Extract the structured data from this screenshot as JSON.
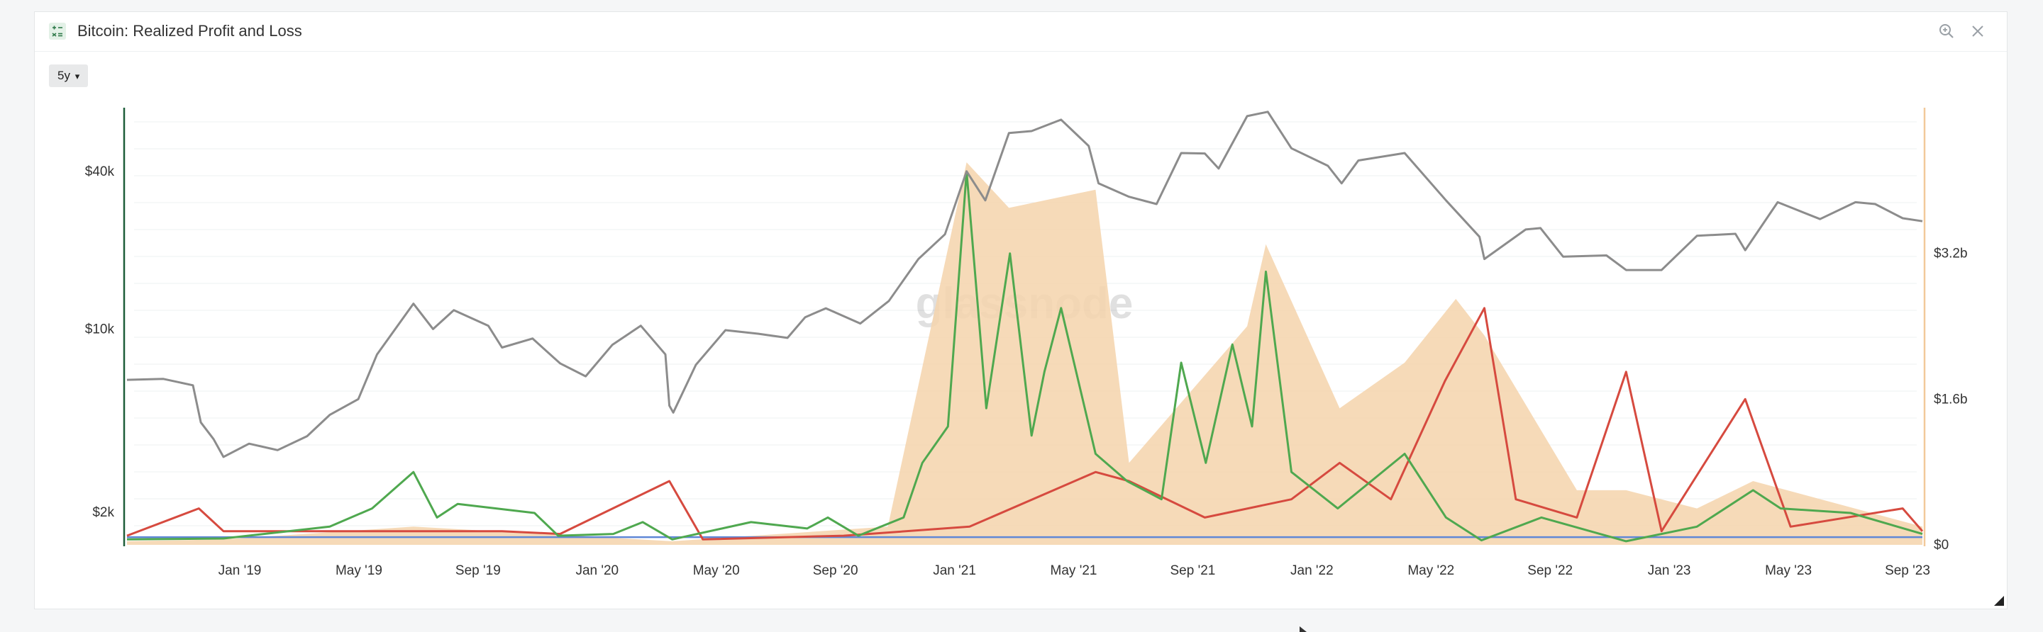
{
  "window": {
    "title": "Bitcoin: Realized Profit and Loss",
    "range_label": "5y",
    "range_caret": "▾",
    "icons": {
      "app": "indicator-icon",
      "zoom": "zoom-in-icon",
      "close": "close-icon",
      "resize": "resize-handle-icon"
    }
  },
  "chart_data": {
    "type": "line",
    "title": "Bitcoin: Realized Profit and Loss",
    "watermark": "glassnode",
    "x_ticks": [
      "Jan '19",
      "May '19",
      "Sep '19",
      "Jan '20",
      "May '20",
      "Sep '20",
      "Jan '21",
      "May '21",
      "Sep '21",
      "Jan '22",
      "May '22",
      "Sep '22",
      "Jan '23",
      "May '23",
      "Sep '23"
    ],
    "y_left": {
      "scale": "log",
      "ticks": [
        "$2k",
        "$10k",
        "$40k"
      ],
      "tick_values": [
        2000,
        10000,
        40000
      ],
      "range": [
        1500,
        70000
      ]
    },
    "y_right": {
      "ticks": [
        "$0",
        "$1.6b",
        "$3.2b"
      ],
      "tick_values": [
        0,
        1600000000.0,
        3200000000.0
      ],
      "range": [
        0,
        4800000000.0
      ]
    },
    "x_range": [
      "2018-09-08",
      "2023-09-06"
    ],
    "grid": true,
    "colors": {
      "price": "#8c8c8c",
      "profit": "#4fa84f",
      "loss": "#d64a3f",
      "fill": "#f5d4ac",
      "baseline": "#5f87d6",
      "left_axis": "#1e5e3a",
      "right_axis": "#f2c99b"
    },
    "series": [
      {
        "key": "price",
        "axis": "left",
        "values": [
          [
            "2018-09-08",
            6400
          ],
          [
            "2018-10-15",
            6450
          ],
          [
            "2018-11-14",
            6100
          ],
          [
            "2018-11-22",
            4400
          ],
          [
            "2018-12-05",
            3800
          ],
          [
            "2018-12-15",
            3250
          ],
          [
            "2019-01-10",
            3650
          ],
          [
            "2019-02-08",
            3450
          ],
          [
            "2019-03-10",
            3900
          ],
          [
            "2019-04-02",
            4700
          ],
          [
            "2019-05-01",
            5400
          ],
          [
            "2019-05-20",
            8000
          ],
          [
            "2019-06-26",
            12500
          ],
          [
            "2019-07-16",
            10000
          ],
          [
            "2019-08-06",
            11800
          ],
          [
            "2019-09-10",
            10300
          ],
          [
            "2019-09-24",
            8500
          ],
          [
            "2019-10-25",
            9200
          ],
          [
            "2019-11-22",
            7400
          ],
          [
            "2019-12-18",
            6600
          ],
          [
            "2020-01-14",
            8700
          ],
          [
            "2020-02-12",
            10300
          ],
          [
            "2020-03-08",
            8000
          ],
          [
            "2020-03-12",
            5100
          ],
          [
            "2020-03-16",
            4800
          ],
          [
            "2020-04-08",
            7300
          ],
          [
            "2020-05-08",
            9900
          ],
          [
            "2020-06-10",
            9600
          ],
          [
            "2020-07-10",
            9250
          ],
          [
            "2020-07-28",
            11100
          ],
          [
            "2020-08-18",
            12000
          ],
          [
            "2020-09-22",
            10500
          ],
          [
            "2020-10-21",
            12800
          ],
          [
            "2020-11-20",
            18500
          ],
          [
            "2020-12-17",
            23000
          ],
          [
            "2021-01-08",
            40000
          ],
          [
            "2021-01-27",
            31000
          ],
          [
            "2021-02-20",
            56000
          ],
          [
            "2021-03-15",
            57000
          ],
          [
            "2021-04-14",
            63000
          ],
          [
            "2021-05-12",
            50000
          ],
          [
            "2021-05-22",
            36000
          ],
          [
            "2021-06-22",
            32000
          ],
          [
            "2021-07-20",
            30000
          ],
          [
            "2021-08-14",
            47000
          ],
          [
            "2021-09-07",
            46800
          ],
          [
            "2021-09-21",
            41000
          ],
          [
            "2021-10-20",
            65000
          ],
          [
            "2021-11-10",
            67500
          ],
          [
            "2021-12-04",
            49000
          ],
          [
            "2022-01-10",
            42000
          ],
          [
            "2022-01-24",
            36000
          ],
          [
            "2022-02-10",
            44000
          ],
          [
            "2022-03-29",
            47000
          ],
          [
            "2022-05-10",
            31000
          ],
          [
            "2022-06-13",
            22500
          ],
          [
            "2022-06-18",
            18500
          ],
          [
            "2022-07-30",
            24000
          ],
          [
            "2022-08-14",
            24300
          ],
          [
            "2022-09-06",
            18900
          ],
          [
            "2022-10-20",
            19100
          ],
          [
            "2022-11-09",
            16800
          ],
          [
            "2022-12-15",
            16800
          ],
          [
            "2023-01-20",
            22700
          ],
          [
            "2023-02-28",
            23100
          ],
          [
            "2023-03-10",
            20000
          ],
          [
            "2023-04-12",
            30500
          ],
          [
            "2023-05-25",
            26300
          ],
          [
            "2023-06-30",
            30500
          ],
          [
            "2023-07-20",
            30000
          ],
          [
            "2023-08-17",
            26500
          ],
          [
            "2023-09-06",
            25800
          ]
        ]
      },
      {
        "key": "profit",
        "axis": "right",
        "values": [
          [
            "2018-09-08",
            60000000
          ],
          [
            "2018-12-15",
            70000000
          ],
          [
            "2019-04-02",
            200000000
          ],
          [
            "2019-05-15",
            400000000
          ],
          [
            "2019-06-26",
            800000000
          ],
          [
            "2019-07-20",
            300000000
          ],
          [
            "2019-08-10",
            450000000
          ],
          [
            "2019-10-27",
            350000000
          ],
          [
            "2019-11-20",
            100000000
          ],
          [
            "2020-01-15",
            120000000
          ],
          [
            "2020-02-14",
            250000000
          ],
          [
            "2020-03-15",
            60000000
          ],
          [
            "2020-06-03",
            250000000
          ],
          [
            "2020-07-30",
            180000000
          ],
          [
            "2020-08-20",
            300000000
          ],
          [
            "2020-09-20",
            100000000
          ],
          [
            "2020-11-05",
            300000000
          ],
          [
            "2020-11-24",
            900000000
          ],
          [
            "2020-12-20",
            1300000000
          ],
          [
            "2021-01-08",
            4100000000
          ],
          [
            "2021-01-28",
            1500000000
          ],
          [
            "2021-02-21",
            3200000000
          ],
          [
            "2021-03-15",
            1200000000
          ],
          [
            "2021-03-28",
            1900000000
          ],
          [
            "2021-04-14",
            2600000000
          ],
          [
            "2021-05-19",
            1000000000
          ],
          [
            "2021-06-20",
            700000000
          ],
          [
            "2021-07-25",
            500000000
          ],
          [
            "2021-08-14",
            2000000000
          ],
          [
            "2021-09-08",
            900000000
          ],
          [
            "2021-10-05",
            2200000000
          ],
          [
            "2021-10-25",
            1300000000
          ],
          [
            "2021-11-08",
            3000000000
          ],
          [
            "2021-12-04",
            800000000
          ],
          [
            "2022-01-20",
            400000000
          ],
          [
            "2022-03-29",
            1000000000
          ],
          [
            "2022-05-10",
            300000000
          ],
          [
            "2022-06-15",
            50000000
          ],
          [
            "2022-08-15",
            300000000
          ],
          [
            "2022-11-09",
            40000000
          ],
          [
            "2023-01-20",
            200000000
          ],
          [
            "2023-03-18",
            600000000
          ],
          [
            "2023-04-15",
            400000000
          ],
          [
            "2023-06-25",
            350000000
          ],
          [
            "2023-09-06",
            120000000
          ]
        ]
      },
      {
        "key": "loss",
        "axis": "right",
        "values": [
          [
            "2018-09-08",
            100000000
          ],
          [
            "2018-11-20",
            400000000
          ],
          [
            "2018-12-15",
            150000000
          ],
          [
            "2019-06-27",
            150000000
          ],
          [
            "2019-09-24",
            150000000
          ],
          [
            "2019-11-22",
            120000000
          ],
          [
            "2020-03-12",
            700000000
          ],
          [
            "2020-04-15",
            60000000
          ],
          [
            "2020-09-05",
            100000000
          ],
          [
            "2021-01-11",
            200000000
          ],
          [
            "2021-05-19",
            800000000
          ],
          [
            "2021-06-22",
            700000000
          ],
          [
            "2021-09-07",
            300000000
          ],
          [
            "2021-12-04",
            500000000
          ],
          [
            "2022-01-22",
            900000000
          ],
          [
            "2022-03-15",
            500000000
          ],
          [
            "2022-05-09",
            1800000000
          ],
          [
            "2022-06-18",
            2600000000
          ],
          [
            "2022-07-20",
            500000000
          ],
          [
            "2022-09-20",
            300000000
          ],
          [
            "2022-11-09",
            1900000000
          ],
          [
            "2022-12-15",
            150000000
          ],
          [
            "2023-03-10",
            1600000000
          ],
          [
            "2023-04-25",
            200000000
          ],
          [
            "2023-08-17",
            400000000
          ],
          [
            "2023-09-06",
            150000000
          ]
        ]
      },
      {
        "key": "net_fill",
        "axis": "right",
        "values": [
          [
            "2018-09-08",
            40000000
          ],
          [
            "2018-12-15",
            60000000
          ],
          [
            "2019-06-26",
            200000000
          ],
          [
            "2020-03-15",
            40000000
          ],
          [
            "2020-10-20",
            200000000
          ],
          [
            "2021-01-08",
            4200000000
          ],
          [
            "2021-02-20",
            3700000000
          ],
          [
            "2021-05-19",
            3900000000
          ],
          [
            "2021-06-22",
            900000000
          ],
          [
            "2021-10-20",
            2400000000
          ],
          [
            "2021-11-08",
            3300000000
          ],
          [
            "2022-01-22",
            1500000000
          ],
          [
            "2022-03-29",
            2000000000
          ],
          [
            "2022-05-20",
            2700000000
          ],
          [
            "2022-06-18",
            2300000000
          ],
          [
            "2022-09-20",
            600000000
          ],
          [
            "2022-11-09",
            600000000
          ],
          [
            "2023-01-20",
            400000000
          ],
          [
            "2023-03-18",
            700000000
          ],
          [
            "2023-09-06",
            200000000
          ]
        ]
      },
      {
        "key": "baseline",
        "axis": "right",
        "values": [
          [
            "2018-09-08",
            85000000
          ],
          [
            "2023-09-06",
            85000000
          ]
        ]
      }
    ]
  }
}
